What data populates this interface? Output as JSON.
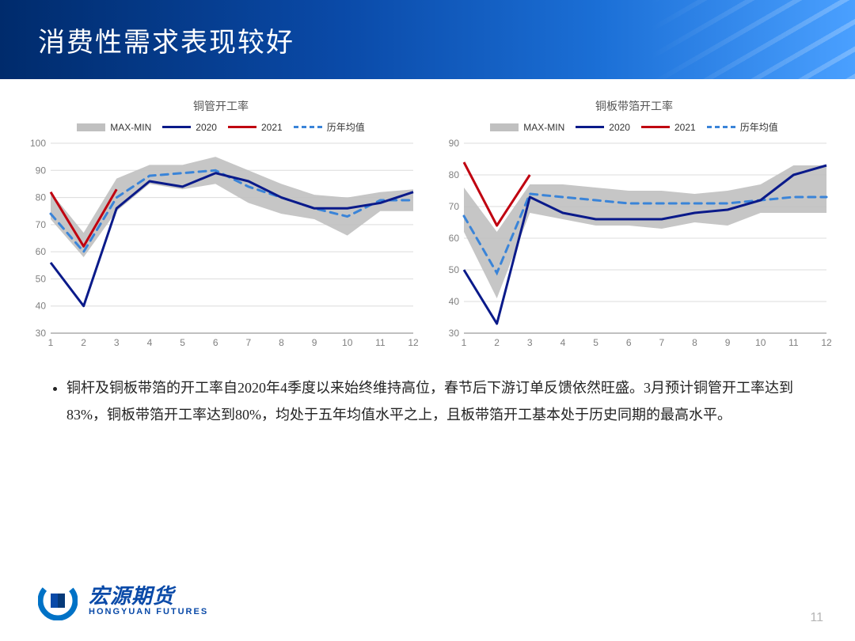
{
  "slide": {
    "title": "消费性需求表现较好",
    "page_number": "11",
    "bullet": "铜杆及铜板带箔的开工率自2020年4季度以来始终维持高位，春节后下游订单反馈依然旺盛。3月预计铜管开工率达到83%，铜板带箔开工率达到80%，均处于五年均值水平之上，且板带箔开工基本处于历史同期的最高水平。",
    "logo": {
      "cn": "宏源期货",
      "en": "HONGYUAN FUTURES",
      "mark_colors": {
        "ring": "#0072c6",
        "cube": "#063a7a"
      }
    },
    "title_bar_gradient": [
      "#002b6c",
      "#0a4aa8",
      "#1b6fd6",
      "#4aa0ff"
    ]
  },
  "legend_labels": {
    "band": "MAX-MIN",
    "y2020": "2020",
    "y2021": "2021",
    "avg": "历年均值"
  },
  "colors": {
    "band": "#c0c0c0",
    "y2020": "#0a1a8a",
    "y2021": "#c00010",
    "avg": "#3a84d8",
    "grid": "#dcdcdc",
    "axis": "#808080",
    "tick_text": "#808080",
    "bg": "#ffffff"
  },
  "chart_left": {
    "title": "铜管开工率",
    "type": "line-with-band",
    "x": [
      1,
      2,
      3,
      4,
      5,
      6,
      7,
      8,
      9,
      10,
      11,
      12
    ],
    "ylim": [
      30,
      100
    ],
    "ytick_step": 10,
    "band_max": [
      82,
      67,
      87,
      92,
      92,
      95,
      90,
      85,
      81,
      80,
      82,
      83
    ],
    "band_min": [
      72,
      58,
      75,
      85,
      83,
      85,
      78,
      74,
      72,
      66,
      75,
      75
    ],
    "y2020": [
      56,
      40,
      76,
      86,
      84,
      89,
      86,
      80,
      76,
      76,
      78,
      82
    ],
    "y2021": [
      82,
      62,
      83
    ],
    "avg": [
      74,
      60,
      80,
      88,
      89,
      90,
      84,
      80,
      76,
      73,
      79,
      79
    ],
    "line_width": 3,
    "tick_fontsize": 12
  },
  "chart_right": {
    "title": "铜板带箔开工率",
    "type": "line-with-band",
    "x": [
      1,
      2,
      3,
      4,
      5,
      6,
      7,
      8,
      9,
      10,
      11,
      12
    ],
    "ylim": [
      30,
      90
    ],
    "ytick_step": 10,
    "band_max": [
      76,
      62,
      77,
      77,
      76,
      75,
      75,
      74,
      75,
      77,
      83,
      83
    ],
    "band_min": [
      62,
      41,
      68,
      66,
      64,
      64,
      63,
      65,
      64,
      68,
      68,
      68
    ],
    "y2020": [
      50,
      33,
      73,
      68,
      66,
      66,
      66,
      68,
      69,
      72,
      80,
      83
    ],
    "y2021": [
      84,
      64,
      80
    ],
    "avg": [
      67,
      49,
      74,
      73,
      72,
      71,
      71,
      71,
      71,
      72,
      73,
      73
    ],
    "line_width": 3,
    "tick_fontsize": 12
  }
}
